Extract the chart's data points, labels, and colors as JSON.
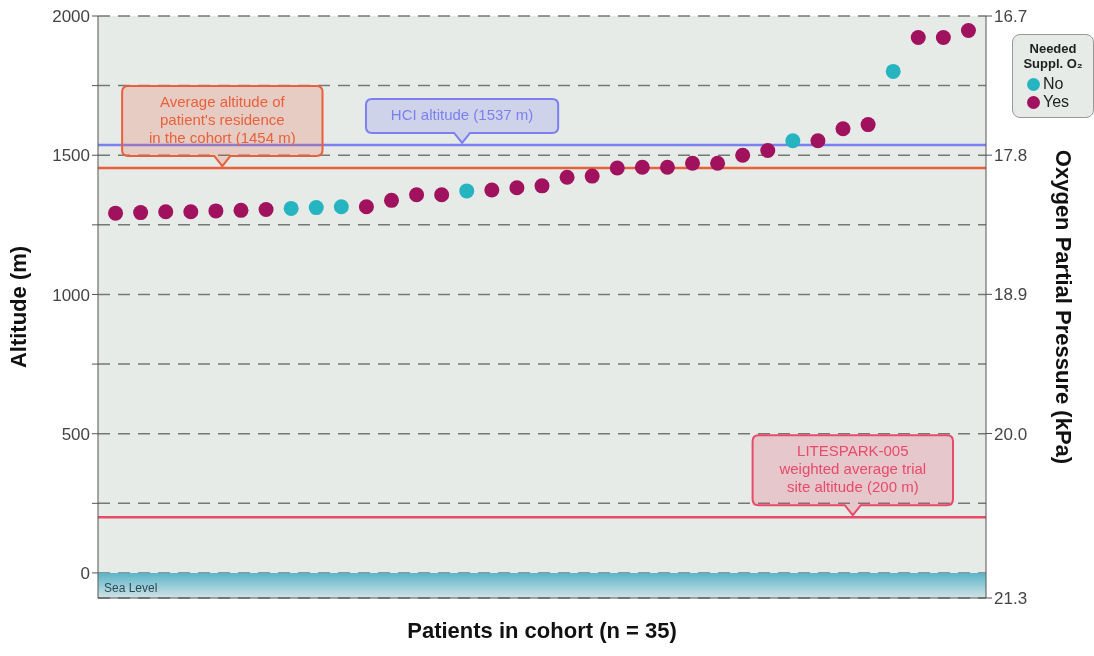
{
  "chart_data": {
    "type": "scatter",
    "xlabel": "Patients in cohort (n = 35)",
    "ylabel": "Altitude (m)",
    "y2label": "Oxygen Partial Pressure (kPa)",
    "legend_title": "Needed Suppl. O₂",
    "categories": [
      null,
      null,
      null,
      null,
      null,
      null,
      null,
      null,
      null,
      null,
      null,
      null,
      null,
      null,
      null,
      null,
      null,
      null,
      null,
      null,
      null,
      null,
      null,
      null,
      null,
      null,
      null,
      null,
      null,
      null,
      null,
      null,
      null,
      null,
      null
    ],
    "series": [
      {
        "name": "No",
        "color": "#26b5c0",
        "values": [
          null,
          null,
          null,
          null,
          null,
          null,
          null,
          1309,
          1312,
          1315,
          null,
          null,
          null,
          null,
          1372,
          null,
          null,
          null,
          null,
          null,
          null,
          null,
          null,
          null,
          null,
          null,
          null,
          1552,
          null,
          null,
          null,
          1801,
          null,
          null,
          null
        ]
      },
      {
        "name": "Yes",
        "color": "#a0115e",
        "values": [
          1292,
          1294,
          1297,
          1297,
          1300,
          1302,
          1305,
          null,
          null,
          null,
          1315,
          1338,
          1358,
          1358,
          null,
          1375,
          1383,
          1390,
          1421,
          1425,
          1454,
          1457,
          1457,
          1471,
          1471,
          1500,
          1517,
          null,
          1552,
          1595,
          1610,
          null,
          1923,
          1923,
          1948
        ]
      }
    ],
    "ylim": [
      -90,
      2000
    ],
    "yticks": [
      0,
      {
        "value": 250,
        "label": null
      },
      500,
      {
        "value": 750,
        "label": null
      },
      1000,
      {
        "value": 1250,
        "label": null
      },
      1500,
      {
        "value": 1750,
        "label": null
      },
      2000
    ],
    "y2lim": [
      21.3,
      16.7
    ],
    "y2ticks": [
      {
        "value": 21.3,
        "label": "21.3"
      },
      {
        "value": 20.0,
        "label": "20.0"
      },
      {
        "value": 18.9,
        "label": "18.9"
      },
      {
        "value": 17.8,
        "label": "17.8"
      },
      {
        "value": 16.7,
        "label": "16.7"
      }
    ],
    "ref_lines": [
      {
        "axis": "y",
        "value": 1537,
        "label": "HCI altitude (1537 m)",
        "color": "#7b7ff0"
      },
      {
        "axis": "y",
        "value": 1454,
        "label": "Average altitude of\npatient's residence\nin the cohort (1454 m)",
        "color": "#e8603c"
      },
      {
        "axis": "y",
        "value": 200,
        "label": "LITESPARK-005\nweighted average trial\nsite altitude (200 m)",
        "color": "#e84a6a"
      }
    ],
    "bands": [
      {
        "axis": "y",
        "from": -90,
        "to": 0,
        "label": "Sea Level",
        "color": "#5ab4c8"
      }
    ],
    "grid": "y",
    "legend": "top right",
    "marker": "circle",
    "tick_labels": "y"
  }
}
